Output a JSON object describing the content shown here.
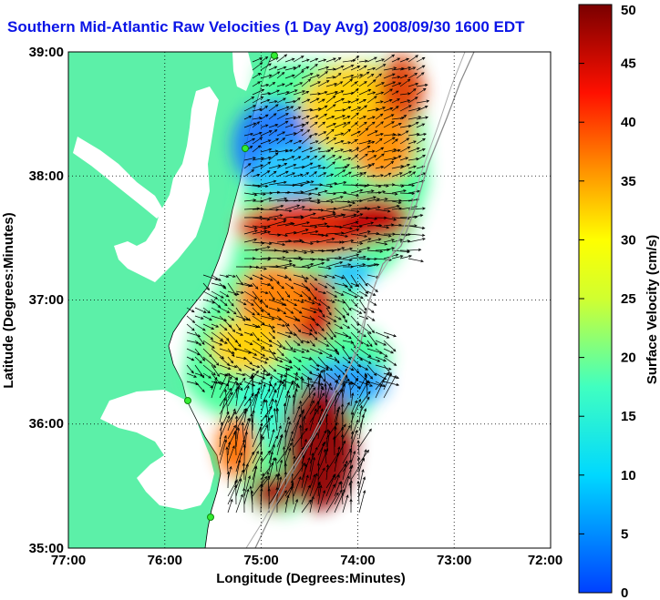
{
  "title": "Southern Mid-Atlantic Raw Velocities (1 Day Avg) 2008/09/30 1600 EDT",
  "x_axis": {
    "label": "Longitude (Degrees:Minutes)",
    "ticks": [
      "77:00",
      "76:00",
      "75:00",
      "74:00",
      "73:00",
      "72:00"
    ]
  },
  "y_axis": {
    "label": "Latitude (Degrees:Minutes)",
    "ticks": [
      "39:00",
      "38:00",
      "37:00",
      "36:00",
      "35:00"
    ]
  },
  "colorbar": {
    "label": "Surface Velocity (cm/s)",
    "ticks": [
      "50",
      "45",
      "40",
      "35",
      "30",
      "25",
      "20",
      "15",
      "10",
      "5",
      "0"
    ],
    "range": [
      0,
      50
    ]
  },
  "colors": {
    "land": "#5cf0a8",
    "ocean": "#ffffff",
    "title": "#0a14e6",
    "station": "#33ee33"
  },
  "stations": [
    "station-north",
    "station-mid",
    "station-cape-hatteras-north",
    "station-cape-hatteras-south"
  ]
}
